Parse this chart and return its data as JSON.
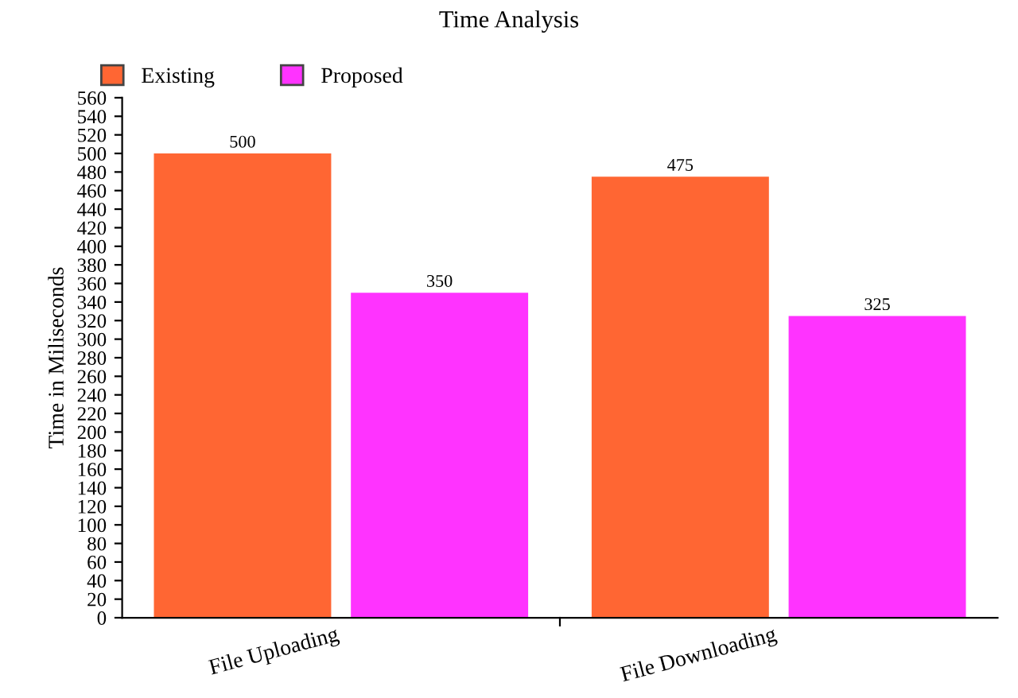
{
  "chart_data": {
    "type": "bar",
    "title": "Time Analysis",
    "ylabel": "Time in Miliseconds",
    "categories": [
      "File Uploading",
      "File Downloading"
    ],
    "series": [
      {
        "name": "Existing",
        "color": "#ff6633",
        "values": [
          500,
          475
        ]
      },
      {
        "name": "Proposed",
        "color": "#ff33ff",
        "values": [
          350,
          325
        ]
      }
    ],
    "ylim": [
      0,
      560
    ],
    "yticks": [
      0,
      20,
      40,
      60,
      80,
      100,
      120,
      140,
      160,
      180,
      200,
      220,
      240,
      260,
      280,
      300,
      320,
      340,
      360,
      380,
      400,
      420,
      440,
      460,
      480,
      500,
      520,
      540,
      560
    ],
    "data_labels": true,
    "legend": "top left",
    "grid": false
  }
}
